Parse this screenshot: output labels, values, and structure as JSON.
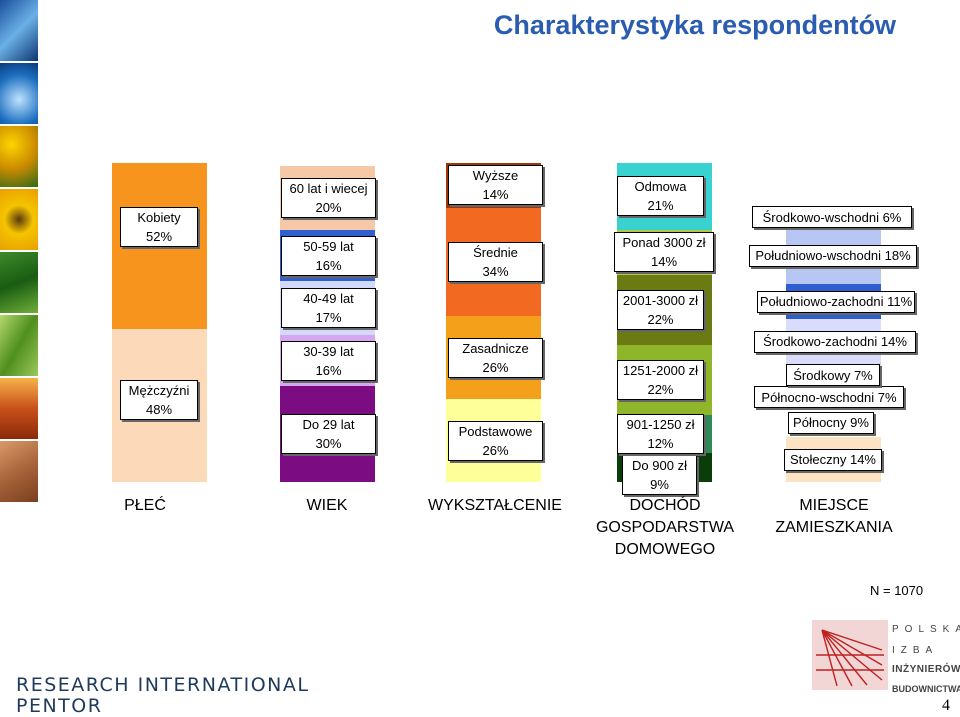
{
  "title": "Charakterystyka respondentów",
  "n_label": "N = 1070",
  "logos": {
    "research_international": "RESEARCH INTERNATIONAL\nPENTOR",
    "pib_line1": "POLSKA",
    "pib_line2": "IZBA",
    "pib_line3": "INŻYNIERÓW",
    "pib_line4": "BUDOWNICTWA"
  },
  "page_number": "4",
  "chart_data": {
    "type": "bar",
    "stacked": true,
    "categories": [
      "PŁEĆ",
      "WIEK",
      "WYKSZTAŁCENIE",
      "DOCHÓD\nGOSPODARSTWA\nDOMOWEGO",
      "MIEJSCE\nZAMIESZKANIA"
    ],
    "ylim": [
      0,
      100
    ],
    "bars": [
      {
        "category": "PŁEĆ",
        "segments": [
          {
            "label": "Mężczyźni\n48%",
            "value": 48,
            "color": "#fcd9b8"
          },
          {
            "label": "Kobiety\n52%",
            "value": 52,
            "color": "#f7941d"
          }
        ]
      },
      {
        "category": "WIEK",
        "segments": [
          {
            "label": "Do 29 lat\n30%",
            "value": 30,
            "color": "#7b0c82"
          },
          {
            "label": "30-39 lat\n16%",
            "value": 16,
            "color": "#d7a6f0"
          },
          {
            "label": "40-49 lat\n17%",
            "value": 17,
            "color": "#d4d9fc"
          },
          {
            "label": "50-59 lat\n16%",
            "value": 16,
            "color": "#3060d0"
          },
          {
            "label": "60 lat i wiecej\n20%",
            "value": 20,
            "color": "#f5c8a6"
          }
        ]
      },
      {
        "category": "WYKSZTAŁCENIE",
        "segments": [
          {
            "label": "Podstawowe\n26%",
            "value": 26,
            "color": "#ffff99"
          },
          {
            "label": "Zasadnicze\n26%",
            "value": 26,
            "color": "#f5a01a"
          },
          {
            "label": "Średnie\n34%",
            "value": 34,
            "color": "#f26a21"
          },
          {
            "label": "Wyższe\n14%",
            "value": 14,
            "color": "#a33409"
          }
        ]
      },
      {
        "category": "DOCHÓD\nGOSPODARSTWA\nDOMOWEGO",
        "segments": [
          {
            "label": "Do 900 zł\n9%",
            "value": 9,
            "color": "#0b3d0b"
          },
          {
            "label": "901-1250 zł\n12%",
            "value": 12,
            "color": "#2e8b57"
          },
          {
            "label": "1251-2000 zł\n22%",
            "value": 22,
            "color": "#8fb52a"
          },
          {
            "label": "2001-3000 zł\n22%",
            "value": 22,
            "color": "#6b7a12"
          },
          {
            "label": "Ponad 3000 zł\n14%",
            "value": 14,
            "color": "#b0c84a"
          },
          {
            "label": "Odmowa\n21%",
            "value": 21,
            "color": "#3ad1d1"
          }
        ]
      },
      {
        "category": "MIEJSCE\nZAMIESZKANIA",
        "segments": [
          {
            "label": "Stołeczny 14%",
            "value": 14,
            "color": "#fbe3c4"
          },
          {
            "label": "Północny 9%",
            "value": 9,
            "color": "#ffffff"
          },
          {
            "label": "Północno-wschodni 7%",
            "value": 7,
            "color": "#e8e8f8"
          },
          {
            "label": "Środkowy 7%",
            "value": 7,
            "color": "#f9c7a5"
          },
          {
            "label": "Środkowo-zachodni 14%",
            "value": 14,
            "color": "#d9dcfa"
          },
          {
            "label": "Południowo-zachodni 11%",
            "value": 11,
            "color": "#2d5fd0"
          },
          {
            "label": "Południowo-wschodni 18%",
            "value": 18,
            "color": "#b7c6f3"
          },
          {
            "label": "Środkowo-wschodni 6%",
            "value": 6,
            "color": "#d02020"
          }
        ]
      }
    ]
  }
}
